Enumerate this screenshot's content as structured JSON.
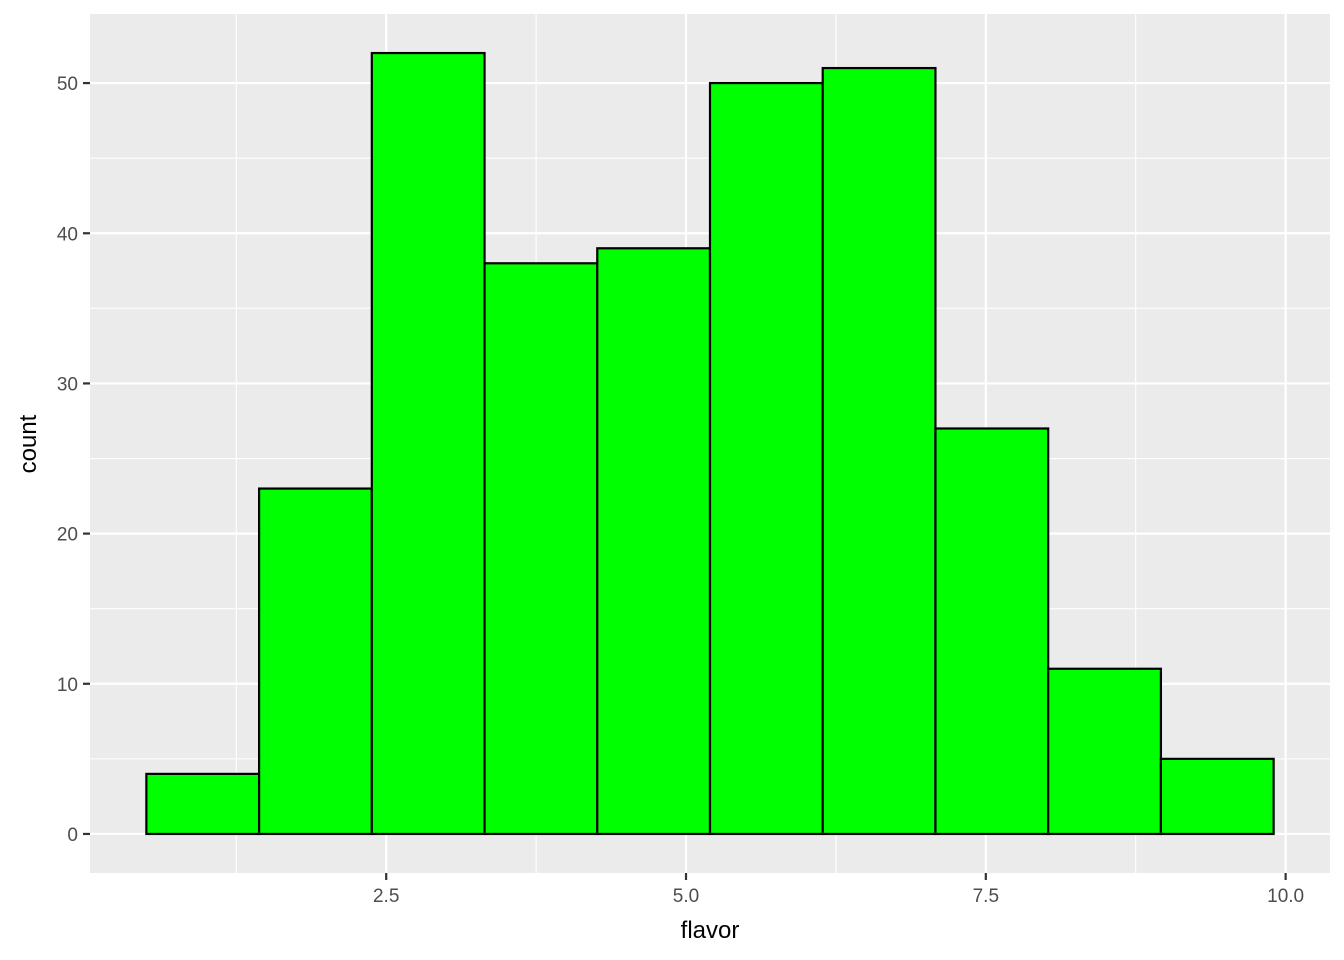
{
  "chart_data": {
    "type": "histogram",
    "xlabel": "flavor",
    "ylabel": "count",
    "bins": [
      {
        "x0": 0.5,
        "x1": 1.44,
        "count": 4
      },
      {
        "x0": 1.44,
        "x1": 2.38,
        "count": 23
      },
      {
        "x0": 2.38,
        "x1": 3.32,
        "count": 52
      },
      {
        "x0": 3.32,
        "x1": 4.26,
        "count": 38
      },
      {
        "x0": 4.26,
        "x1": 5.2,
        "count": 39
      },
      {
        "x0": 5.2,
        "x1": 6.14,
        "count": 50
      },
      {
        "x0": 6.14,
        "x1": 7.08,
        "count": 51
      },
      {
        "x0": 7.08,
        "x1": 8.02,
        "count": 27
      },
      {
        "x0": 8.02,
        "x1": 8.96,
        "count": 11
      },
      {
        "x0": 8.96,
        "x1": 9.9,
        "count": 5
      }
    ],
    "x_ticks": [
      {
        "value": 2.5,
        "label": "2.5"
      },
      {
        "value": 5.0,
        "label": "5.0"
      },
      {
        "value": 7.5,
        "label": "7.5"
      },
      {
        "value": 10.0,
        "label": "10.0"
      }
    ],
    "y_ticks": [
      {
        "value": 0,
        "label": "0"
      },
      {
        "value": 10,
        "label": "10"
      },
      {
        "value": 20,
        "label": "20"
      },
      {
        "value": 30,
        "label": "30"
      },
      {
        "value": 40,
        "label": "40"
      },
      {
        "value": 50,
        "label": "50"
      }
    ],
    "xlim": [
      0.03,
      10.37
    ],
    "ylim": [
      -2.6,
      54.6
    ],
    "grid": true,
    "legend": "none",
    "colors": {
      "fill": "#00ff00",
      "outline": "#000000",
      "panel": "#ebebeb",
      "grid": "#ffffff"
    }
  }
}
